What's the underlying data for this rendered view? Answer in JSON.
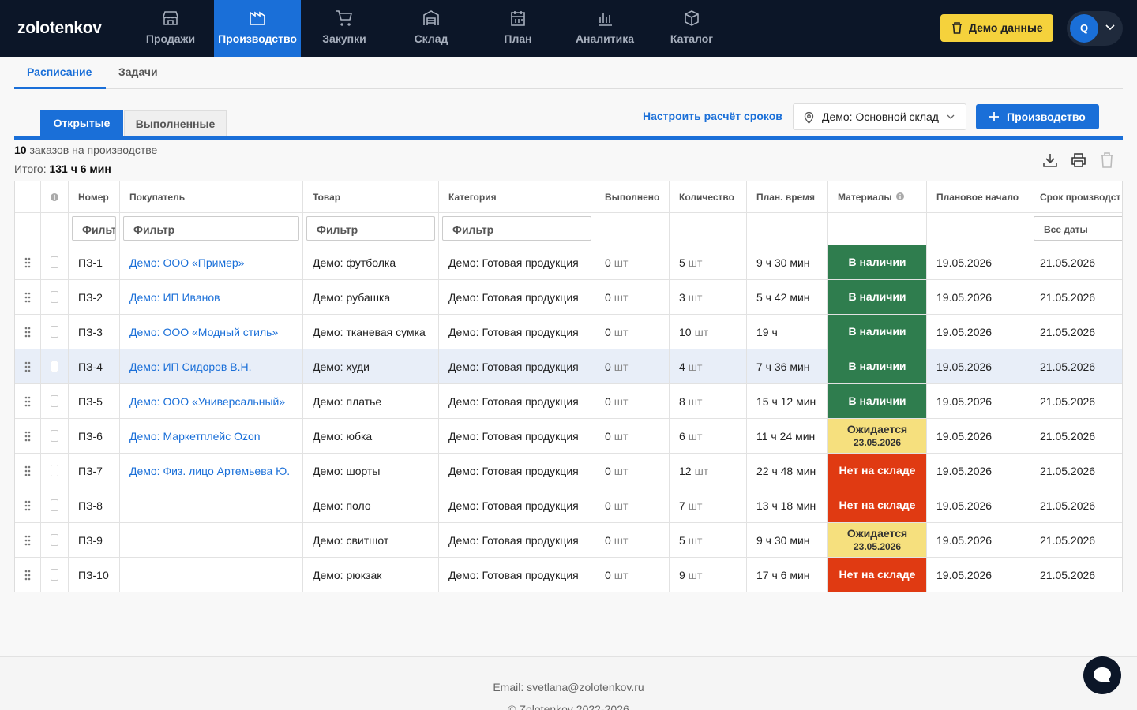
{
  "nav": {
    "brand": "zolotenkov",
    "items": [
      "Продажи",
      "Производство",
      "Закупки",
      "Склад",
      "План",
      "Аналитика",
      "Каталог"
    ],
    "demo_button": "Демо данные",
    "avatar": "Q"
  },
  "tabs": [
    "Расписание",
    "Задачи"
  ],
  "subtabs": [
    "Открытые",
    "Выполненные"
  ],
  "toolbar": {
    "settings_link": "Настроить расчёт сроков",
    "warehouse": "Демо: Основной склад",
    "add_button": "Производство"
  },
  "summary": {
    "count": 10,
    "count_text": "заказов на производстве",
    "total_label": "Итого:",
    "total": "131 ч 6 мин"
  },
  "table": {
    "columns": [
      "Номер",
      "Покупатель",
      "Товар",
      "Категория",
      "Выполнено",
      "Количество",
      "План. время",
      "Материалы",
      "Плановое начало",
      "Срок производст"
    ],
    "filters": [
      "Фильтр",
      "Фильтр",
      "Фильтр",
      "Фильтр",
      "Все даты"
    ],
    "unit": "шт",
    "rows": [
      {
        "number": "ПЗ-1",
        "customer": "Демо: ООО «Пример»",
        "product": "Демо: футболка",
        "category": "Демо: Готовая продукция",
        "done": 0,
        "qty": 5,
        "time": "9 ч 30 мин",
        "materials": {
          "label": "В наличии",
          "color": "#2f7d4e"
        },
        "start": "19.05.2026",
        "deadline": "21.05.2026"
      },
      {
        "number": "ПЗ-2",
        "customer": "Демо: ИП Иванов",
        "product": "Демо: рубашка",
        "category": "Демо: Готовая продукция",
        "done": 0,
        "qty": 3,
        "time": "5 ч 42 мин",
        "materials": {
          "label": "В наличии",
          "color": "#2f7d4e"
        },
        "start": "19.05.2026",
        "deadline": "21.05.2026"
      },
      {
        "number": "ПЗ-3",
        "customer": "Демо: ООО «Модный стиль»",
        "product": "Демо: тканевая сумка",
        "category": "Демо: Готовая продукция",
        "done": 0,
        "qty": 10,
        "time": "19 ч",
        "materials": {
          "label": "В наличии",
          "color": "#2f7d4e"
        },
        "start": "19.05.2026",
        "deadline": "21.05.2026"
      },
      {
        "number": "ПЗ-4",
        "customer": "Демо: ИП Сидоров В.Н.",
        "product": "Демо: худи",
        "category": "Демо: Готовая продукция",
        "done": 0,
        "qty": 4,
        "time": "7 ч 36 мин",
        "materials": {
          "label": "В наличии",
          "color": "#2f7d4e"
        },
        "start": "19.05.2026",
        "deadline": "21.05.2026"
      },
      {
        "number": "ПЗ-5",
        "customer": "Демо: ООО «Универсальный»",
        "product": "Демо: платье",
        "category": "Демо: Готовая продукция",
        "done": 0,
        "qty": 8,
        "time": "15 ч 12 мин",
        "materials": {
          "label": "В наличии",
          "color": "#2f7d4e"
        },
        "start": "19.05.2026",
        "deadline": "21.05.2026"
      },
      {
        "number": "ПЗ-6",
        "customer": "Демо: Маркетплейс Ozon",
        "product": "Демо: юбка",
        "category": "Демо: Готовая продукция",
        "done": 0,
        "qty": 6,
        "time": "11 ч 24 мин",
        "materials": {
          "label": "Ожидается",
          "date": "23.05.2026",
          "color": "#f6e07e"
        },
        "start": "19.05.2026",
        "deadline": "21.05.2026"
      },
      {
        "number": "ПЗ-7",
        "customer": "Демо: Физ. лицо Артемьева Ю.",
        "product": "Демо: шорты",
        "category": "Демо: Готовая продукция",
        "done": 0,
        "qty": 12,
        "time": "22 ч 48 мин",
        "materials": {
          "label": "Нет на складе",
          "color": "#e03a12"
        },
        "start": "19.05.2026",
        "deadline": "21.05.2026"
      },
      {
        "number": "ПЗ-8",
        "product": "Демо: поло",
        "category": "Демо: Готовая продукция",
        "done": 0,
        "qty": 7,
        "time": "13 ч 18 мин",
        "materials": {
          "label": "Нет на складе",
          "color": "#e03a12"
        },
        "start": "19.05.2026",
        "deadline": "21.05.2026"
      },
      {
        "number": "ПЗ-9",
        "product": "Демо: свитшот",
        "category": "Демо: Готовая продукция",
        "done": 0,
        "qty": 5,
        "time": "9 ч 30 мин",
        "materials": {
          "label": "Ожидается",
          "date": "23.05.2026",
          "color": "#f6e07e"
        },
        "start": "19.05.2026",
        "deadline": "21.05.2026"
      },
      {
        "number": "ПЗ-10",
        "product": "Демо: рюкзак",
        "category": "Демо: Готовая продукция",
        "done": 0,
        "qty": 9,
        "time": "17 ч 6 мин",
        "materials": {
          "label": "Нет на складе",
          "color": "#e03a12"
        },
        "start": "19.05.2026",
        "deadline": "21.05.2026"
      }
    ]
  },
  "footer": {
    "email": "Email: svetlana@zolotenkov.ru",
    "copyright": "© Zolotenkov 2022-2026"
  }
}
